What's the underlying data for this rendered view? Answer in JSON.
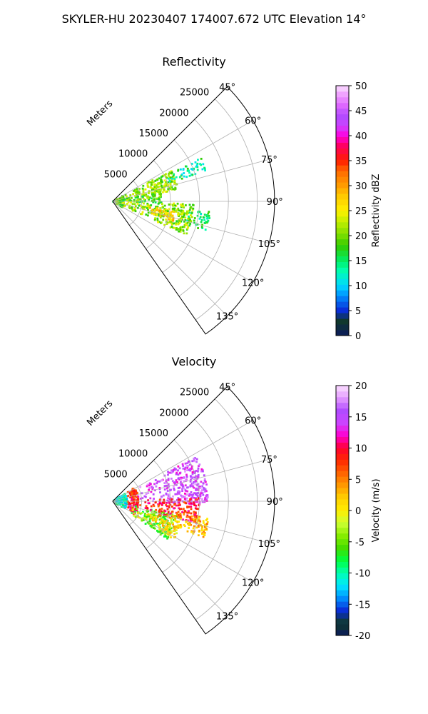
{
  "figure": {
    "suptitle": "SKYLER-HU  20230407  174007.672 UTC Elevation 14°"
  },
  "chart_data": [
    {
      "type": "heatmap",
      "subtype": "polar-sector-ppi",
      "title": "Reflectivity",
      "radial_axis_label": "Meters",
      "radial_ticks": [
        5000,
        10000,
        15000,
        20000,
        25000
      ],
      "radial_range": [
        0,
        28000
      ],
      "azimuth_range_deg": [
        45,
        145
      ],
      "azimuth_ticks": [
        "45°",
        "60°",
        "75°",
        "90°",
        "105°",
        "120°",
        "135°"
      ],
      "grid": true,
      "colorbar": {
        "label": "Reflectivity dBZ",
        "range": [
          0,
          50
        ],
        "ticks": [
          0,
          5,
          10,
          15,
          20,
          25,
          30,
          35,
          40,
          45,
          50
        ],
        "stops": [
          [
            0,
            "#0b1a5c"
          ],
          [
            3,
            "#103a2a"
          ],
          [
            5,
            "#0a2bd6"
          ],
          [
            8,
            "#0090ff"
          ],
          [
            10,
            "#00d8ff"
          ],
          [
            13,
            "#00ffb0"
          ],
          [
            15,
            "#00ee66"
          ],
          [
            18,
            "#33cc00"
          ],
          [
            20,
            "#77dd00"
          ],
          [
            23,
            "#c8f000"
          ],
          [
            25,
            "#fff200"
          ],
          [
            28,
            "#ffc800"
          ],
          [
            30,
            "#ff9d00"
          ],
          [
            33,
            "#ff6a00"
          ],
          [
            35,
            "#ff1e00"
          ],
          [
            38,
            "#ff0060"
          ],
          [
            40,
            "#ff00e0"
          ],
          [
            42,
            "#cc44ff"
          ],
          [
            44,
            "#b04bff"
          ],
          [
            46,
            "#dd66ff"
          ],
          [
            48,
            "#ee99ff"
          ],
          [
            50,
            "#fbe0ff"
          ]
        ]
      },
      "echo_regions": [
        {
          "az": [
            60,
            122
          ],
          "r": [
            0,
            2000
          ],
          "value": 19
        },
        {
          "az": [
            62,
            80
          ],
          "r": [
            1000,
            11500
          ],
          "value": 21
        },
        {
          "az": [
            78,
            92
          ],
          "r": [
            1500,
            8500
          ],
          "value": 19
        },
        {
          "az": [
            92,
            115
          ],
          "r": [
            1000,
            14000
          ],
          "value": 21
        },
        {
          "az": [
            64,
            72
          ],
          "r": [
            10000,
            17000
          ],
          "value": 14
        },
        {
          "az": [
            96,
            108
          ],
          "r": [
            13000,
            17000
          ],
          "value": 15
        },
        {
          "az": [
            98,
            108
          ],
          "r": [
            4500,
            11000
          ],
          "value": 27
        }
      ]
    },
    {
      "type": "heatmap",
      "subtype": "polar-sector-ppi",
      "title": "Velocity",
      "radial_axis_label": "Meters",
      "radial_ticks": [
        5000,
        10000,
        15000,
        20000,
        25000
      ],
      "radial_range": [
        0,
        28000
      ],
      "azimuth_range_deg": [
        45,
        145
      ],
      "azimuth_ticks": [
        "45°",
        "60°",
        "75°",
        "90°",
        "105°",
        "120°",
        "135°"
      ],
      "grid": true,
      "colorbar": {
        "label": "Velocity (m/s)",
        "range": [
          -20,
          20
        ],
        "ticks": [
          -20,
          -15,
          -10,
          -5,
          0,
          5,
          10,
          15,
          20
        ],
        "stops": [
          [
            -20,
            "#0b1a5c"
          ],
          [
            -18,
            "#103a2a"
          ],
          [
            -16,
            "#0a2bd6"
          ],
          [
            -14,
            "#0090ff"
          ],
          [
            -12,
            "#00e8ff"
          ],
          [
            -10,
            "#00ffb0"
          ],
          [
            -8,
            "#00ff40"
          ],
          [
            -6,
            "#44dd00"
          ],
          [
            -4,
            "#88ee00"
          ],
          [
            -2,
            "#ccff33"
          ],
          [
            0,
            "#ffee00"
          ],
          [
            2,
            "#ffd000"
          ],
          [
            4,
            "#ff9a00"
          ],
          [
            6,
            "#ff6400"
          ],
          [
            8,
            "#ff2a00"
          ],
          [
            10,
            "#ff0030"
          ],
          [
            12,
            "#ff00d0"
          ],
          [
            14,
            "#cc44ff"
          ],
          [
            16,
            "#b04bff"
          ],
          [
            18,
            "#e399ff"
          ],
          [
            20,
            "#fbe0ff"
          ]
        ]
      },
      "echo_regions": [
        {
          "az": [
            58,
            122
          ],
          "r": [
            0,
            2500
          ],
          "value": -11
        },
        {
          "az": [
            58,
            122
          ],
          "r": [
            2500,
            4500
          ],
          "value": 9
        },
        {
          "az": [
            102,
            125
          ],
          "r": [
            3000,
            11500
          ],
          "value": -5
        },
        {
          "az": [
            62,
            92
          ],
          "r": [
            4000,
            16500
          ],
          "value": 15
        },
        {
          "az": [
            88,
            105
          ],
          "r": [
            4500,
            15000
          ],
          "value": 9
        },
        {
          "az": [
            100,
            112
          ],
          "r": [
            7000,
            17000
          ],
          "value": 3
        },
        {
          "az": [
            110,
            122
          ],
          "r": [
            3500,
            12500
          ],
          "value": 1
        }
      ]
    }
  ]
}
